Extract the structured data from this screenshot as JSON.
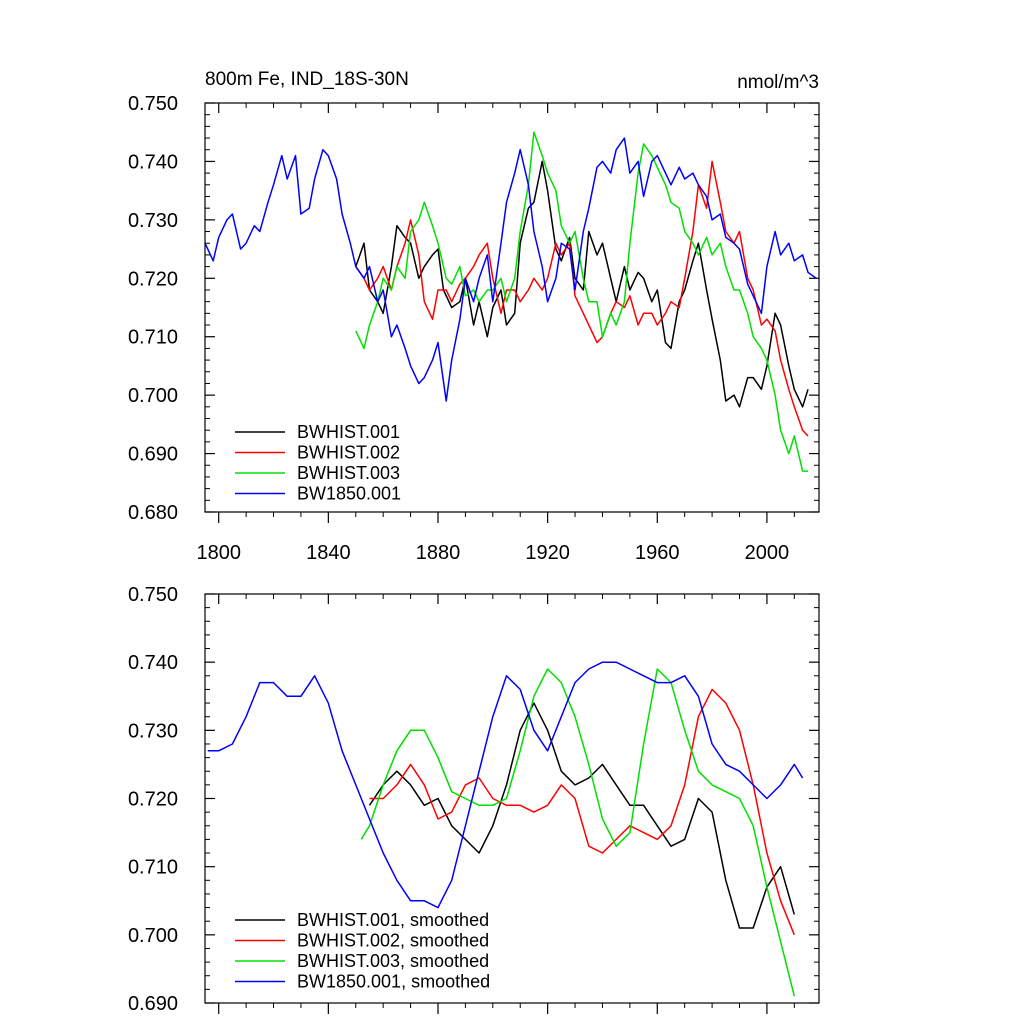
{
  "chart_data": [
    {
      "type": "line",
      "title": "800m Fe, IND_18S-30N",
      "units": "nmol/m^3",
      "xlim": [
        1795,
        2019
      ],
      "ylim": [
        0.68,
        0.75
      ],
      "x_ticks": [
        1800,
        1840,
        1880,
        1920,
        1960,
        2000
      ],
      "x_tick_labels": [
        "1800",
        "1840",
        "1880",
        "1920",
        "1960",
        "2000"
      ],
      "y_ticks": [
        0.68,
        0.69,
        0.7,
        0.71,
        0.72,
        0.73,
        0.74,
        0.75
      ],
      "y_tick_labels": [
        "0.680",
        "0.690",
        "0.700",
        "0.710",
        "0.720",
        "0.730",
        "0.740",
        "0.750"
      ],
      "legend_position": "lower-left",
      "series": [
        {
          "name": "BWHIST.001",
          "color": "#000000",
          "x": [
            1850,
            1853,
            1855,
            1858,
            1860,
            1863,
            1865,
            1868,
            1870,
            1873,
            1875,
            1878,
            1880,
            1882,
            1885,
            1888,
            1890,
            1893,
            1895,
            1898,
            1900,
            1903,
            1905,
            1908,
            1910,
            1913,
            1915,
            1918,
            1920,
            1923,
            1925,
            1928,
            1930,
            1933,
            1935,
            1938,
            1940,
            1943,
            1945,
            1948,
            1950,
            1953,
            1955,
            1958,
            1960,
            1963,
            1965,
            1968,
            1970,
            1973,
            1975,
            1978,
            1980,
            1983,
            1985,
            1988,
            1990,
            1993,
            1995,
            1998,
            2000,
            2003,
            2005,
            2008,
            2010,
            2013,
            2015
          ],
          "y": [
            0.722,
            0.726,
            0.718,
            0.716,
            0.714,
            0.722,
            0.729,
            0.727,
            0.726,
            0.72,
            0.722,
            0.724,
            0.725,
            0.718,
            0.715,
            0.716,
            0.72,
            0.712,
            0.716,
            0.71,
            0.715,
            0.718,
            0.712,
            0.714,
            0.726,
            0.732,
            0.733,
            0.74,
            0.735,
            0.725,
            0.723,
            0.727,
            0.72,
            0.718,
            0.728,
            0.724,
            0.726,
            0.72,
            0.716,
            0.722,
            0.718,
            0.721,
            0.72,
            0.716,
            0.718,
            0.709,
            0.708,
            0.716,
            0.718,
            0.723,
            0.726,
            0.718,
            0.713,
            0.706,
            0.699,
            0.7,
            0.698,
            0.703,
            0.703,
            0.701,
            0.705,
            0.714,
            0.712,
            0.705,
            0.701,
            0.698,
            0.701
          ]
        },
        {
          "name": "BWHIST.002",
          "color": "#ff0000",
          "x": [
            1850,
            1853,
            1855,
            1858,
            1860,
            1863,
            1865,
            1868,
            1870,
            1873,
            1875,
            1878,
            1880,
            1883,
            1885,
            1888,
            1890,
            1893,
            1895,
            1898,
            1900,
            1903,
            1905,
            1908,
            1910,
            1913,
            1915,
            1918,
            1920,
            1923,
            1925,
            1928,
            1930,
            1933,
            1935,
            1938,
            1940,
            1943,
            1945,
            1948,
            1950,
            1953,
            1955,
            1958,
            1960,
            1963,
            1965,
            1968,
            1970,
            1973,
            1975,
            1978,
            1980,
            1983,
            1985,
            1988,
            1990,
            1993,
            1995,
            1998,
            2000,
            2003,
            2005,
            2008,
            2010,
            2013,
            2015
          ],
          "y": [
            0.722,
            0.72,
            0.718,
            0.72,
            0.722,
            0.718,
            0.722,
            0.726,
            0.73,
            0.724,
            0.716,
            0.713,
            0.718,
            0.718,
            0.716,
            0.719,
            0.72,
            0.722,
            0.724,
            0.726,
            0.72,
            0.714,
            0.718,
            0.718,
            0.716,
            0.718,
            0.72,
            0.718,
            0.72,
            0.726,
            0.724,
            0.726,
            0.717,
            0.714,
            0.712,
            0.709,
            0.71,
            0.714,
            0.716,
            0.715,
            0.717,
            0.712,
            0.714,
            0.714,
            0.712,
            0.714,
            0.716,
            0.715,
            0.72,
            0.728,
            0.736,
            0.732,
            0.74,
            0.733,
            0.728,
            0.726,
            0.728,
            0.72,
            0.718,
            0.712,
            0.713,
            0.711,
            0.706,
            0.701,
            0.698,
            0.694,
            0.693
          ]
        },
        {
          "name": "BWHIST.003",
          "color": "#00e000",
          "x": [
            1850,
            1853,
            1855,
            1858,
            1860,
            1863,
            1865,
            1868,
            1870,
            1873,
            1875,
            1878,
            1880,
            1883,
            1885,
            1888,
            1890,
            1893,
            1895,
            1898,
            1900,
            1903,
            1905,
            1908,
            1910,
            1913,
            1915,
            1918,
            1920,
            1923,
            1925,
            1928,
            1930,
            1933,
            1935,
            1938,
            1940,
            1943,
            1945,
            1948,
            1950,
            1953,
            1955,
            1958,
            1960,
            1963,
            1965,
            1968,
            1970,
            1973,
            1975,
            1978,
            1980,
            1983,
            1985,
            1988,
            1990,
            1993,
            1995,
            1998,
            2000,
            2003,
            2005,
            2008,
            2010,
            2013,
            2015
          ],
          "y": [
            0.711,
            0.708,
            0.712,
            0.716,
            0.72,
            0.718,
            0.722,
            0.72,
            0.728,
            0.73,
            0.733,
            0.729,
            0.726,
            0.72,
            0.719,
            0.722,
            0.717,
            0.718,
            0.716,
            0.718,
            0.718,
            0.72,
            0.716,
            0.72,
            0.728,
            0.736,
            0.745,
            0.741,
            0.738,
            0.735,
            0.729,
            0.726,
            0.728,
            0.72,
            0.716,
            0.716,
            0.71,
            0.714,
            0.712,
            0.716,
            0.726,
            0.738,
            0.743,
            0.741,
            0.739,
            0.736,
            0.733,
            0.732,
            0.728,
            0.726,
            0.724,
            0.727,
            0.724,
            0.726,
            0.722,
            0.718,
            0.718,
            0.714,
            0.71,
            0.708,
            0.706,
            0.7,
            0.694,
            0.69,
            0.693,
            0.687,
            0.687
          ]
        },
        {
          "name": "BW1850.001",
          "color": "#0000ff",
          "x": [
            1795,
            1798,
            1800,
            1803,
            1805,
            1808,
            1810,
            1813,
            1815,
            1818,
            1820,
            1823,
            1825,
            1828,
            1830,
            1833,
            1835,
            1838,
            1840,
            1843,
            1845,
            1848,
            1850,
            1853,
            1855,
            1858,
            1860,
            1863,
            1865,
            1868,
            1870,
            1873,
            1875,
            1878,
            1880,
            1883,
            1885,
            1888,
            1890,
            1893,
            1895,
            1898,
            1900,
            1903,
            1905,
            1908,
            1910,
            1913,
            1915,
            1918,
            1920,
            1923,
            1925,
            1928,
            1930,
            1933,
            1935,
            1938,
            1940,
            1943,
            1945,
            1948,
            1950,
            1953,
            1955,
            1958,
            1960,
            1963,
            1965,
            1968,
            1970,
            1973,
            1975,
            1978,
            1980,
            1983,
            1985,
            1988,
            1990,
            1993,
            1995,
            1998,
            2000,
            2003,
            2005,
            2008,
            2010,
            2013,
            2015,
            2018
          ],
          "y": [
            0.726,
            0.723,
            0.727,
            0.73,
            0.731,
            0.725,
            0.726,
            0.729,
            0.728,
            0.733,
            0.736,
            0.741,
            0.737,
            0.741,
            0.731,
            0.732,
            0.737,
            0.742,
            0.741,
            0.737,
            0.731,
            0.726,
            0.722,
            0.72,
            0.722,
            0.716,
            0.718,
            0.71,
            0.712,
            0.708,
            0.705,
            0.702,
            0.703,
            0.706,
            0.709,
            0.699,
            0.706,
            0.713,
            0.72,
            0.716,
            0.72,
            0.724,
            0.716,
            0.726,
            0.733,
            0.738,
            0.742,
            0.736,
            0.728,
            0.722,
            0.716,
            0.72,
            0.726,
            0.725,
            0.718,
            0.728,
            0.732,
            0.739,
            0.74,
            0.738,
            0.742,
            0.744,
            0.738,
            0.74,
            0.734,
            0.74,
            0.741,
            0.738,
            0.736,
            0.739,
            0.737,
            0.738,
            0.736,
            0.734,
            0.73,
            0.731,
            0.727,
            0.726,
            0.725,
            0.719,
            0.717,
            0.714,
            0.722,
            0.728,
            0.724,
            0.726,
            0.723,
            0.724,
            0.721,
            0.72
          ]
        }
      ]
    },
    {
      "type": "line",
      "title": "",
      "xlim": [
        1795,
        2019
      ],
      "ylim": [
        0.69,
        0.75
      ],
      "x_ticks": [
        1800,
        1840,
        1880,
        1920,
        1960,
        2000
      ],
      "y_ticks": [
        0.69,
        0.7,
        0.71,
        0.72,
        0.73,
        0.74,
        0.75
      ],
      "y_tick_labels": [
        "0.690",
        "0.700",
        "0.710",
        "0.720",
        "0.730",
        "0.740",
        "0.750"
      ],
      "legend_position": "lower-left",
      "series": [
        {
          "name": "BWHIST.001, smoothed",
          "color": "#000000",
          "x": [
            1855,
            1860,
            1865,
            1870,
            1875,
            1880,
            1885,
            1890,
            1895,
            1900,
            1905,
            1910,
            1915,
            1920,
            1925,
            1930,
            1935,
            1940,
            1945,
            1950,
            1955,
            1960,
            1965,
            1970,
            1975,
            1980,
            1985,
            1990,
            1995,
            2000,
            2005,
            2010
          ],
          "y": [
            0.719,
            0.722,
            0.724,
            0.722,
            0.719,
            0.72,
            0.716,
            0.714,
            0.712,
            0.716,
            0.722,
            0.73,
            0.734,
            0.73,
            0.724,
            0.722,
            0.723,
            0.725,
            0.722,
            0.719,
            0.719,
            0.716,
            0.713,
            0.714,
            0.72,
            0.718,
            0.708,
            0.701,
            0.701,
            0.707,
            0.71,
            0.703
          ]
        },
        {
          "name": "BWHIST.002, smoothed",
          "color": "#ff0000",
          "x": [
            1855,
            1860,
            1865,
            1870,
            1875,
            1880,
            1885,
            1890,
            1895,
            1900,
            1905,
            1910,
            1915,
            1920,
            1925,
            1930,
            1935,
            1940,
            1945,
            1950,
            1955,
            1960,
            1965,
            1970,
            1975,
            1980,
            1985,
            1990,
            1995,
            2000,
            2005,
            2010
          ],
          "y": [
            0.72,
            0.72,
            0.722,
            0.725,
            0.722,
            0.717,
            0.718,
            0.722,
            0.723,
            0.72,
            0.719,
            0.719,
            0.718,
            0.719,
            0.722,
            0.72,
            0.713,
            0.712,
            0.714,
            0.716,
            0.715,
            0.714,
            0.716,
            0.722,
            0.732,
            0.736,
            0.734,
            0.73,
            0.722,
            0.712,
            0.705,
            0.7
          ]
        },
        {
          "name": "BWHIST.003, smoothed",
          "color": "#00e000",
          "x": [
            1852,
            1855,
            1860,
            1865,
            1870,
            1875,
            1880,
            1885,
            1890,
            1895,
            1900,
            1905,
            1910,
            1915,
            1920,
            1925,
            1930,
            1935,
            1940,
            1945,
            1950,
            1955,
            1960,
            1965,
            1970,
            1975,
            1980,
            1985,
            1990,
            1995,
            2000,
            2005,
            2010
          ],
          "y": [
            0.714,
            0.716,
            0.722,
            0.727,
            0.73,
            0.73,
            0.726,
            0.721,
            0.72,
            0.719,
            0.719,
            0.72,
            0.727,
            0.735,
            0.739,
            0.737,
            0.732,
            0.725,
            0.717,
            0.713,
            0.715,
            0.728,
            0.739,
            0.737,
            0.73,
            0.724,
            0.722,
            0.721,
            0.72,
            0.716,
            0.707,
            0.699,
            0.691
          ]
        },
        {
          "name": "BW1850.001, smoothed",
          "color": "#0000ff",
          "x": [
            1796,
            1800,
            1805,
            1810,
            1815,
            1820,
            1825,
            1830,
            1835,
            1840,
            1845,
            1850,
            1855,
            1860,
            1865,
            1870,
            1875,
            1880,
            1885,
            1890,
            1895,
            1900,
            1905,
            1910,
            1915,
            1920,
            1925,
            1930,
            1935,
            1940,
            1945,
            1950,
            1955,
            1960,
            1965,
            1970,
            1975,
            1980,
            1985,
            1990,
            1995,
            2000,
            2005,
            2010,
            2013
          ],
          "y": [
            0.727,
            0.727,
            0.728,
            0.732,
            0.737,
            0.737,
            0.735,
            0.735,
            0.738,
            0.734,
            0.727,
            0.722,
            0.717,
            0.712,
            0.708,
            0.705,
            0.705,
            0.704,
            0.708,
            0.716,
            0.724,
            0.732,
            0.738,
            0.736,
            0.73,
            0.727,
            0.732,
            0.737,
            0.739,
            0.74,
            0.74,
            0.739,
            0.738,
            0.737,
            0.737,
            0.738,
            0.735,
            0.728,
            0.725,
            0.724,
            0.722,
            0.72,
            0.722,
            0.725,
            0.723
          ]
        }
      ]
    }
  ]
}
